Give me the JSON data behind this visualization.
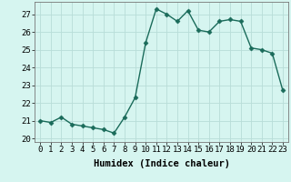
{
  "x": [
    0,
    1,
    2,
    3,
    4,
    5,
    6,
    7,
    8,
    9,
    10,
    11,
    12,
    13,
    14,
    15,
    16,
    17,
    18,
    19,
    20,
    21,
    22,
    23
  ],
  "y": [
    21.0,
    20.9,
    21.2,
    20.8,
    20.7,
    20.6,
    20.5,
    20.3,
    21.2,
    22.3,
    25.4,
    27.3,
    27.0,
    26.6,
    27.2,
    26.1,
    26.0,
    26.6,
    26.7,
    26.6,
    25.1,
    25.0,
    24.8,
    22.7
  ],
  "xlim": [
    -0.5,
    23.5
  ],
  "ylim": [
    19.8,
    27.7
  ],
  "yticks": [
    20,
    21,
    22,
    23,
    24,
    25,
    26,
    27
  ],
  "xticks": [
    0,
    1,
    2,
    3,
    4,
    5,
    6,
    7,
    8,
    9,
    10,
    11,
    12,
    13,
    14,
    15,
    16,
    17,
    18,
    19,
    20,
    21,
    22,
    23
  ],
  "xlabel": "Humidex (Indice chaleur)",
  "line_color": "#1a6b5a",
  "marker": "D",
  "marker_size": 2.5,
  "background_color": "#d6f5f0",
  "grid_color": "#b8ddd8",
  "axis_fontsize": 7,
  "tick_fontsize": 6.5,
  "xlabel_fontsize": 7.5
}
